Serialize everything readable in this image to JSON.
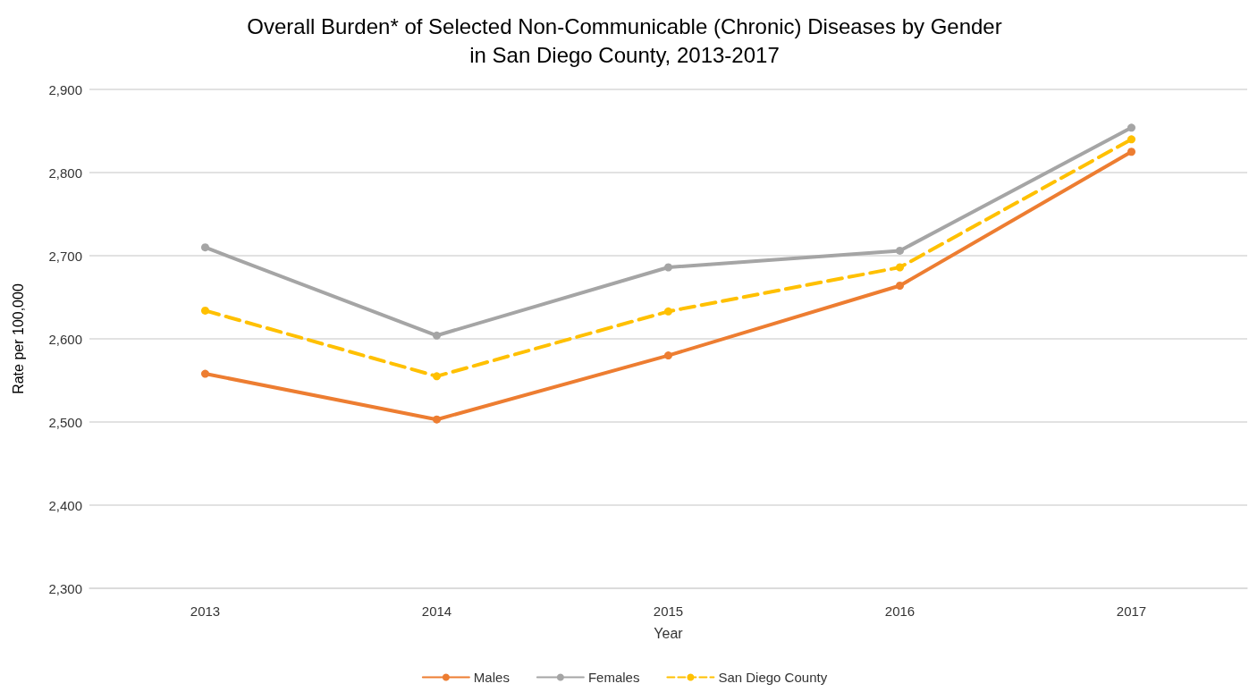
{
  "chart_data": {
    "type": "line",
    "title": "Overall Burden* of Selected Non-Communicable (Chronic) Diseases by Gender\nin San Diego County, 2013-2017",
    "xlabel": "Year",
    "ylabel": "Rate per 100,000",
    "categories": [
      "2013",
      "2014",
      "2015",
      "2016",
      "2017"
    ],
    "series": [
      {
        "name": "Males",
        "color": "#ed7d31",
        "values": [
          2558,
          2503,
          2580,
          2664,
          2825
        ],
        "line_style": "solid"
      },
      {
        "name": "Females",
        "color": "#a5a5a5",
        "values": [
          2710,
          2604,
          2686,
          2706,
          2854
        ],
        "line_style": "solid"
      },
      {
        "name": "San Diego County",
        "color": "#ffc000",
        "values": [
          2634,
          2555,
          2633,
          2686,
          2840
        ],
        "line_style": "dashed"
      }
    ],
    "ylim": [
      2300,
      2900
    ],
    "yticks": [
      {
        "value": 2300,
        "label": "2,300"
      },
      {
        "value": 2400,
        "label": "2,400"
      },
      {
        "value": 2500,
        "label": "2,500"
      },
      {
        "value": 2600,
        "label": "2,600"
      },
      {
        "value": 2700,
        "label": "2,700"
      },
      {
        "value": 2800,
        "label": "2,800"
      },
      {
        "value": 2900,
        "label": "2,900"
      }
    ],
    "grid": "y",
    "legend": "bottom",
    "marker": "circle"
  }
}
